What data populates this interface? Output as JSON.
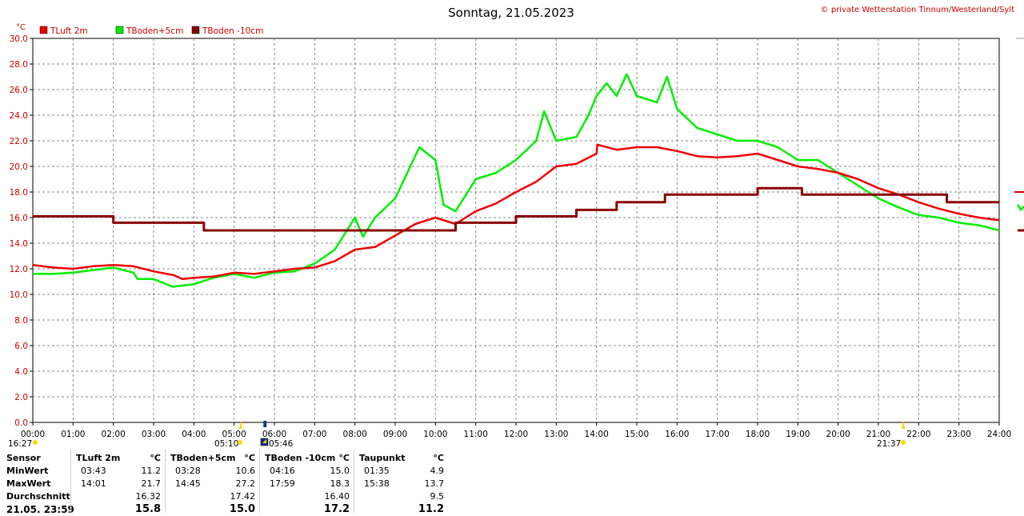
{
  "header": {
    "title": "Sonntag, 21.05.2023",
    "copyright": "© private Wetterstation Tinnum/Westerland/Sylt",
    "unit": "°C"
  },
  "chart_data": {
    "type": "line",
    "xlim": [
      "00:00",
      "24:00"
    ],
    "ylim": [
      0,
      30
    ],
    "grid": true,
    "legend_placement": "top-left",
    "x_ticks": [
      "00:00",
      "01:00",
      "02:00",
      "03:00",
      "04:00",
      "05:00",
      "06:00",
      "07:00",
      "08:00",
      "09:00",
      "10:00",
      "11:00",
      "12:00",
      "13:00",
      "14:00",
      "15:00",
      "16:00",
      "17:00",
      "18:00",
      "19:00",
      "20:00",
      "21:00",
      "22:00",
      "23:00",
      "24:00"
    ],
    "y_ticks": [
      "0.0",
      "2.0",
      "4.0",
      "6.0",
      "8.0",
      "10.0",
      "12.0",
      "14.0",
      "16.0",
      "18.0",
      "20.0",
      "22.0",
      "24.0",
      "26.0",
      "28.0",
      "30.0"
    ],
    "series": [
      {
        "name": "TLuft 2m",
        "color": "#ee0000",
        "points": [
          [
            0,
            12.3
          ],
          [
            0.5,
            12.1
          ],
          [
            1,
            12.0
          ],
          [
            1.5,
            12.2
          ],
          [
            2,
            12.3
          ],
          [
            2.5,
            12.2
          ],
          [
            3,
            11.8
          ],
          [
            3.5,
            11.5
          ],
          [
            3.72,
            11.2
          ],
          [
            4,
            11.3
          ],
          [
            4.5,
            11.4
          ],
          [
            5,
            11.7
          ],
          [
            5.5,
            11.6
          ],
          [
            6,
            11.8
          ],
          [
            6.5,
            12.0
          ],
          [
            7,
            12.1
          ],
          [
            7.5,
            12.6
          ],
          [
            8,
            13.5
          ],
          [
            8.5,
            13.7
          ],
          [
            9,
            14.6
          ],
          [
            9.5,
            15.5
          ],
          [
            10,
            16.0
          ],
          [
            10.5,
            15.5
          ],
          [
            11,
            16.5
          ],
          [
            11.5,
            17.1
          ],
          [
            12,
            18.0
          ],
          [
            12.5,
            18.8
          ],
          [
            13,
            20.0
          ],
          [
            13.5,
            20.2
          ],
          [
            14,
            21.0
          ],
          [
            14.02,
            21.7
          ],
          [
            14.5,
            21.3
          ],
          [
            15,
            21.5
          ],
          [
            15.5,
            21.5
          ],
          [
            16,
            21.2
          ],
          [
            16.5,
            20.8
          ],
          [
            17,
            20.7
          ],
          [
            17.5,
            20.8
          ],
          [
            18,
            21.0
          ],
          [
            18.5,
            20.5
          ],
          [
            19,
            20.0
          ],
          [
            19.5,
            19.8
          ],
          [
            20,
            19.5
          ],
          [
            20.5,
            19.0
          ],
          [
            21,
            18.3
          ],
          [
            21.5,
            17.8
          ],
          [
            22,
            17.2
          ],
          [
            22.5,
            16.7
          ],
          [
            23,
            16.3
          ],
          [
            23.5,
            16.0
          ],
          [
            24,
            15.8
          ]
        ]
      },
      {
        "name": "TBoden+5cm",
        "color": "#00ee00",
        "points": [
          [
            0,
            11.6
          ],
          [
            0.5,
            11.6
          ],
          [
            1,
            11.7
          ],
          [
            1.5,
            11.9
          ],
          [
            2,
            12.1
          ],
          [
            2.5,
            11.7
          ],
          [
            2.6,
            11.2
          ],
          [
            3,
            11.2
          ],
          [
            3.47,
            10.6
          ],
          [
            4,
            10.8
          ],
          [
            4.5,
            11.3
          ],
          [
            5,
            11.6
          ],
          [
            5.5,
            11.3
          ],
          [
            6,
            11.7
          ],
          [
            6.5,
            11.8
          ],
          [
            7,
            12.4
          ],
          [
            7.5,
            13.5
          ],
          [
            8,
            16.0
          ],
          [
            8.2,
            14.5
          ],
          [
            8.5,
            16.0
          ],
          [
            9,
            17.5
          ],
          [
            9.3,
            19.5
          ],
          [
            9.6,
            21.5
          ],
          [
            10,
            20.5
          ],
          [
            10.2,
            17.0
          ],
          [
            10.5,
            16.5
          ],
          [
            11,
            19.0
          ],
          [
            11.5,
            19.5
          ],
          [
            12,
            20.5
          ],
          [
            12.5,
            22.0
          ],
          [
            12.7,
            24.3
          ],
          [
            13,
            22.0
          ],
          [
            13.5,
            22.3
          ],
          [
            13.8,
            24.0
          ],
          [
            14,
            25.5
          ],
          [
            14.25,
            26.5
          ],
          [
            14.5,
            25.5
          ],
          [
            14.75,
            27.2
          ],
          [
            15,
            25.5
          ],
          [
            15.5,
            25.0
          ],
          [
            15.75,
            27.0
          ],
          [
            16,
            24.5
          ],
          [
            16.5,
            23.0
          ],
          [
            17,
            22.5
          ],
          [
            17.5,
            22.0
          ],
          [
            18,
            22.0
          ],
          [
            18.5,
            21.5
          ],
          [
            19,
            20.5
          ],
          [
            19.5,
            20.5
          ],
          [
            20,
            19.5
          ],
          [
            20.5,
            18.5
          ],
          [
            21,
            17.5
          ],
          [
            21.5,
            16.8
          ],
          [
            22,
            16.2
          ],
          [
            22.5,
            16.0
          ],
          [
            23,
            15.6
          ],
          [
            23.5,
            15.4
          ],
          [
            24,
            15.0
          ]
        ]
      },
      {
        "name": "TBoden -10cm",
        "color": "#880000",
        "points": [
          [
            0,
            16.1
          ],
          [
            2,
            16.1
          ],
          [
            2,
            15.6
          ],
          [
            4.25,
            15.6
          ],
          [
            4.25,
            15.0
          ],
          [
            10.5,
            15.0
          ],
          [
            10.5,
            15.6
          ],
          [
            12,
            15.6
          ],
          [
            12,
            16.1
          ],
          [
            13.5,
            16.1
          ],
          [
            13.5,
            16.6
          ],
          [
            14.5,
            16.6
          ],
          [
            14.5,
            17.2
          ],
          [
            15.7,
            17.2
          ],
          [
            15.7,
            17.8
          ],
          [
            18,
            17.8
          ],
          [
            18,
            18.3
          ],
          [
            19.1,
            18.3
          ],
          [
            19.1,
            17.8
          ],
          [
            22.7,
            17.8
          ],
          [
            22.7,
            17.2
          ],
          [
            24,
            17.2
          ]
        ]
      }
    ],
    "sun_events": {
      "left_time": "16:27",
      "sunrise_time": "05:10",
      "moon_time": "05:46",
      "sunset_time": "21:37"
    }
  },
  "stats": {
    "row_labels": [
      "Sensor",
      "MinWert",
      "MaxWert",
      "Durchschnitt",
      "21.05. 23:59"
    ],
    "columns": [
      {
        "name": "TLuft 2m",
        "unit": "°C",
        "min_time": "03:43",
        "min": "11.2",
        "max_time": "14:01",
        "max": "21.7",
        "avg": "16.32",
        "current": "15.8"
      },
      {
        "name": "TBoden+5cm",
        "unit": "°C",
        "min_time": "03:28",
        "min": "10.6",
        "max_time": "14:45",
        "max": "27.2",
        "avg": "17.42",
        "current": "15.0"
      },
      {
        "name": "TBoden -10cm",
        "unit": "°C",
        "min_time": "04:16",
        "min": "15.0",
        "max_time": "17:59",
        "max": "18.3",
        "avg": "16.40",
        "current": "17.2"
      },
      {
        "name": "Taupunkt",
        "unit": "°C",
        "min_time": "01:35",
        "min": "4.9",
        "max_time": "15:38",
        "max": "13.7",
        "avg": "9.5",
        "current": "11.2"
      }
    ]
  }
}
